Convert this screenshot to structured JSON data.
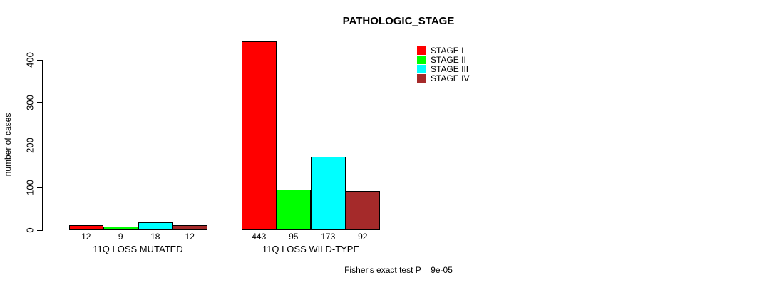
{
  "title": "PATHOLOGIC_STAGE",
  "footer": "Fisher's exact test P = 9e-05",
  "chart_data": {
    "type": "bar",
    "title": "PATHOLOGIC_STAGE",
    "xlabel": "",
    "ylabel": "number of cases",
    "ylim": [
      0,
      400
    ],
    "yticks": [
      0,
      100,
      200,
      300,
      400
    ],
    "grid": false,
    "legend_position": "top-right",
    "categories": [
      "11Q LOSS MUTATED",
      "11Q LOSS WILD-TYPE"
    ],
    "series": [
      {
        "name": "STAGE I",
        "color": "#ff0000",
        "values": [
          12,
          443
        ]
      },
      {
        "name": "STAGE II",
        "color": "#00ff00",
        "values": [
          9,
          95
        ]
      },
      {
        "name": "STAGE III",
        "color": "#00ffff",
        "values": [
          18,
          173
        ]
      },
      {
        "name": "STAGE IV",
        "color": "#a52a2a",
        "values": [
          12,
          92
        ]
      }
    ],
    "bar_value_labels": true,
    "annotation": "Fisher's exact test P = 9e-05"
  }
}
